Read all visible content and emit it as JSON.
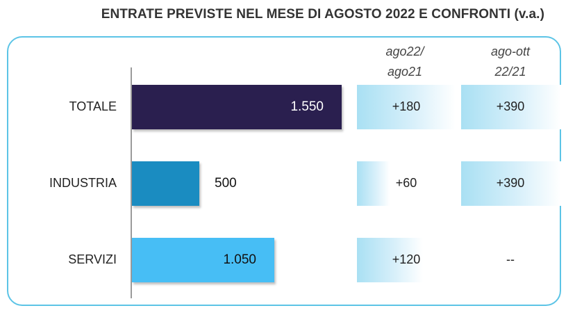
{
  "title": "ENTRATE PREVISTE NEL MESE DI  AGOSTO 2022 E CONFRONTI (v.a.)",
  "columns": {
    "col1_line1": "ago22/",
    "col1_line2": "ago21",
    "col2_line1": "ago-ott",
    "col2_line2": "22/21"
  },
  "colors": {
    "frame": "#5cc4e6",
    "TOTALE": "#2a1f4f",
    "INDUSTRIA": "#1a8cc1",
    "SERVIZI": "#47bef5"
  },
  "chart_data": {
    "type": "bar",
    "orientation": "horizontal",
    "title": "ENTRATE PREVISTE NEL MESE DI  AGOSTO 2022 E CONFRONTI (v.a.)",
    "categories": [
      "TOTALE",
      "INDUSTRIA",
      "SERVIZI"
    ],
    "values": [
      1550,
      500,
      1050
    ],
    "value_labels": [
      "1.550",
      "500",
      "1.050"
    ],
    "xlim": [
      0,
      1550
    ],
    "grid": false,
    "comparisons": [
      {
        "header": "ago22/ ago21",
        "values": [
          180,
          60,
          120
        ],
        "labels": [
          "+180",
          "+60",
          "+120"
        ]
      },
      {
        "header": "ago-ott 22/21",
        "values": [
          390,
          390,
          null
        ],
        "labels": [
          "+390",
          "+390",
          "--"
        ]
      }
    ]
  }
}
